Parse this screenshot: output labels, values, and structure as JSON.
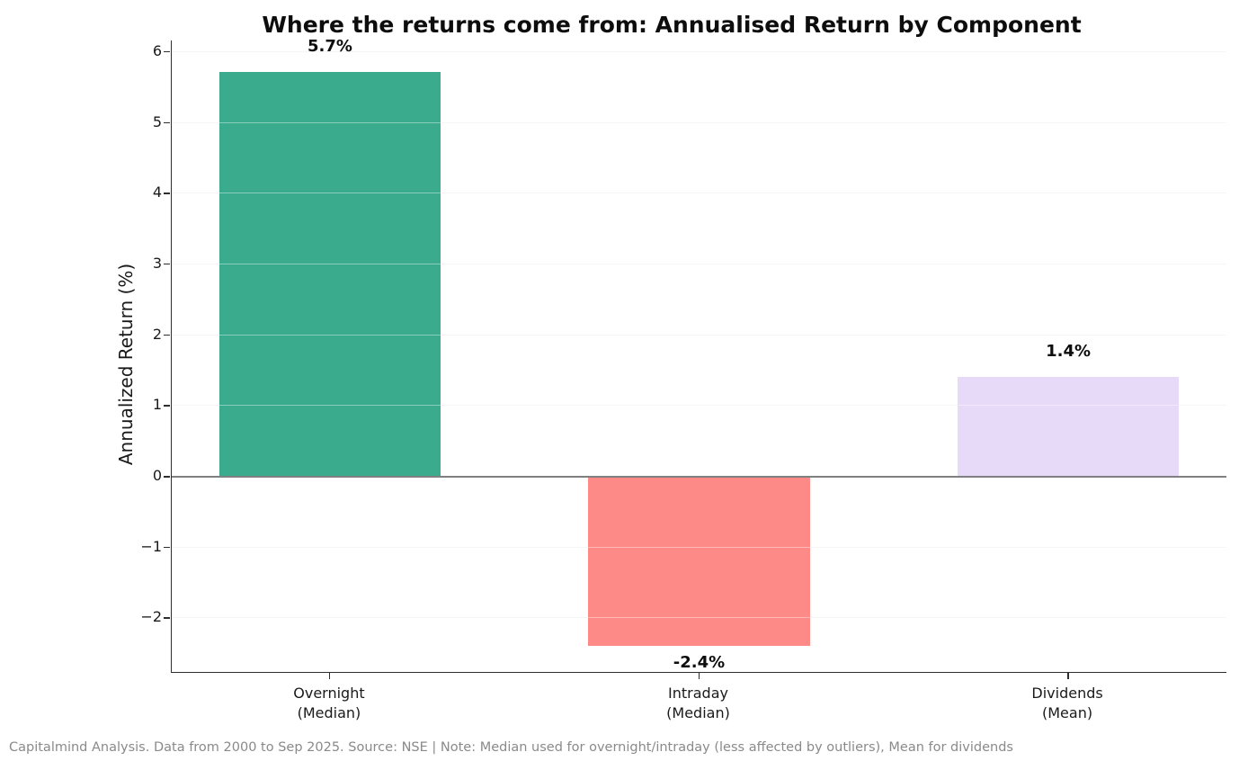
{
  "title": "Where the returns come from: Annualised Return by Component",
  "footer": {
    "text": "Capitalmind Analysis. Data from 2000 to Sep 2025. Source: NSE | Note: Median used for overnight/intraday (less affected by outliers), Mean for dividends"
  },
  "chart_data": {
    "type": "bar",
    "title": "Where the returns come from: Annualised Return by Component",
    "xlabel": "",
    "ylabel": "Annualized Return (%)",
    "categories": [
      "Overnight\n(Median)",
      "Intraday\n(Median)",
      "Dividends\n(Mean)"
    ],
    "values": [
      5.7,
      -2.4,
      1.4
    ],
    "value_labels": [
      "5.7%",
      "-2.4%",
      "1.4%"
    ],
    "bar_colors": [
      "#3aab8d",
      "#fe8a88",
      "#e6daf8"
    ],
    "ytick_values": [
      6,
      5,
      4,
      3,
      2,
      1,
      0,
      -1,
      -2
    ],
    "ytick_labels": [
      "6",
      "5",
      "4",
      "3",
      "2",
      "1",
      "0",
      "−1",
      "−2"
    ],
    "ylim": [
      -2.77,
      6.15
    ],
    "grid": "horizontal",
    "gridline_color": "#f0f0f0",
    "zero_line": true,
    "zero_line_color": "#808080",
    "spine_color": "#2e2e2e",
    "legend": "none",
    "bar_centers_frac": [
      0.15,
      0.5,
      0.85
    ],
    "bar_width_frac": 0.21
  }
}
